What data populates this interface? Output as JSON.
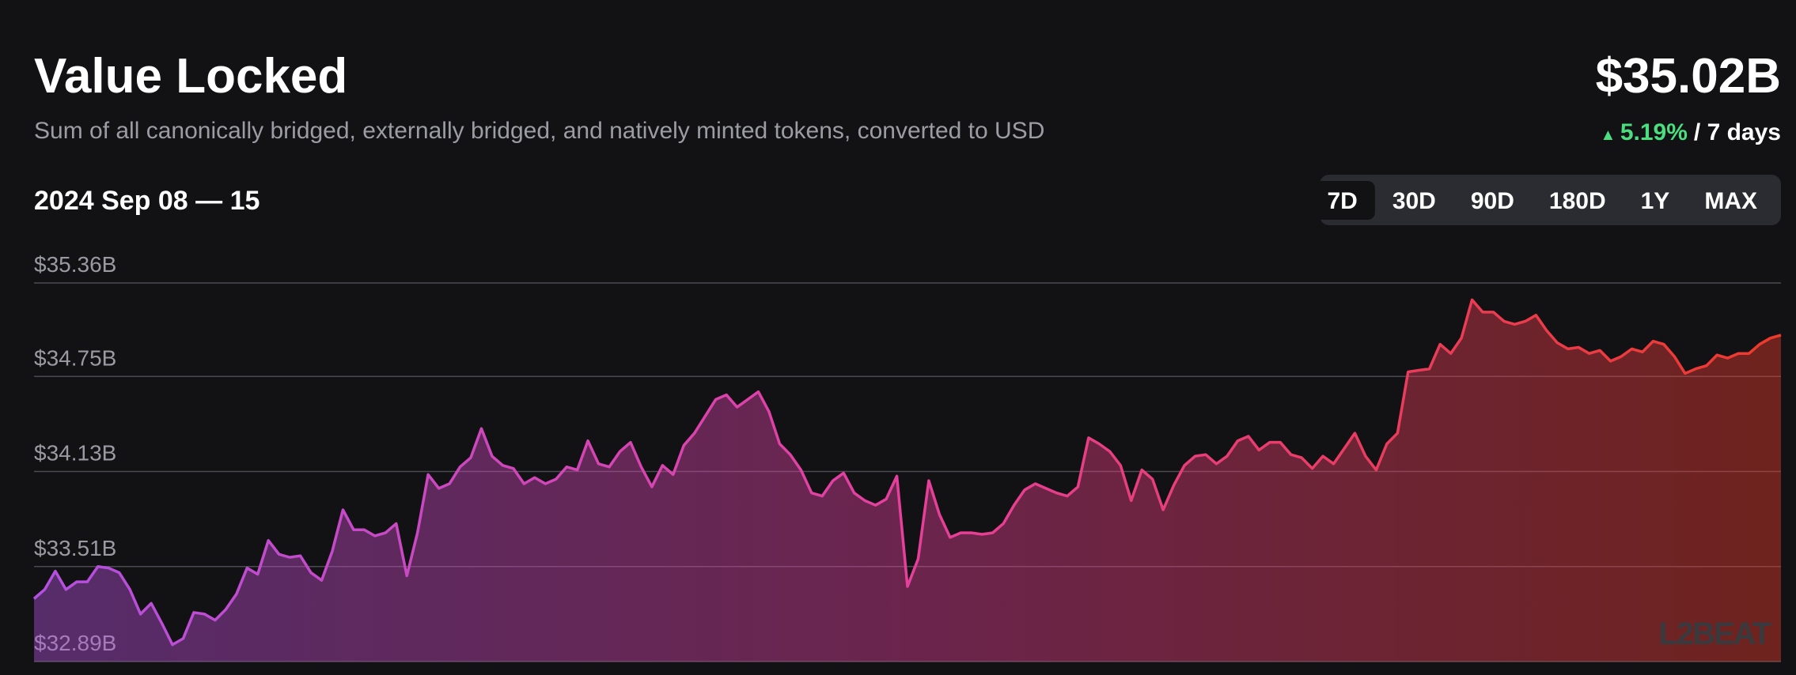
{
  "header": {
    "title": "Value Locked",
    "subtitle": "Sum of all canonically bridged, externally bridged, and natively minted tokens, converted to USD",
    "current_value": "$35.02B",
    "change": "5.19%",
    "change_period": "/ 7 days",
    "date_range": "2024 Sep 08 — 15",
    "ranges": [
      "7D",
      "30D",
      "90D",
      "180D",
      "1Y",
      "MAX"
    ],
    "selected_range": "7D",
    "watermark": "L2BEAT"
  },
  "chart_data": {
    "type": "area",
    "colors": [
      "#b450e0",
      "#e63f9c",
      "#ee3a2b"
    ],
    "ylim": [
      32.89,
      35.36
    ],
    "yticks": [
      {
        "value": 35.36,
        "label": "$35.36B"
      },
      {
        "value": 34.75,
        "label": "$34.75B"
      },
      {
        "value": 34.13,
        "label": "$34.13B"
      },
      {
        "value": 33.51,
        "label": "$33.51B"
      },
      {
        "value": 32.89,
        "label": "$32.89B"
      }
    ],
    "grid": true,
    "values": [
      33.3,
      33.36,
      33.48,
      33.36,
      33.41,
      33.41,
      33.51,
      33.5,
      33.47,
      33.36,
      33.2,
      33.27,
      33.14,
      33.0,
      33.04,
      33.21,
      33.2,
      33.16,
      33.23,
      33.33,
      33.5,
      33.46,
      33.68,
      33.59,
      33.57,
      33.58,
      33.47,
      33.42,
      33.61,
      33.88,
      33.75,
      33.75,
      33.71,
      33.73,
      33.79,
      33.45,
      33.73,
      34.11,
      34.02,
      34.05,
      34.16,
      34.22,
      34.41,
      34.23,
      34.17,
      34.15,
      34.05,
      34.09,
      34.05,
      34.08,
      34.16,
      34.14,
      34.33,
      34.18,
      34.16,
      34.26,
      34.32,
      34.16,
      34.03,
      34.17,
      34.11,
      34.3,
      34.38,
      34.49,
      34.6,
      34.63,
      34.55,
      34.6,
      34.65,
      34.52,
      34.31,
      34.24,
      34.14,
      33.99,
      33.97,
      34.07,
      34.12,
      33.99,
      33.94,
      33.91,
      33.95,
      34.1,
      33.38,
      33.56,
      34.07,
      33.85,
      33.7,
      33.73,
      33.73,
      33.72,
      33.73,
      33.79,
      33.91,
      34.01,
      34.05,
      34.02,
      33.99,
      33.97,
      34.03,
      34.35,
      34.31,
      34.26,
      34.17,
      33.94,
      34.14,
      34.08,
      33.88,
      34.04,
      34.17,
      34.23,
      34.24,
      34.18,
      34.23,
      34.33,
      34.36,
      34.27,
      34.32,
      34.32,
      34.24,
      34.22,
      34.15,
      34.23,
      34.18,
      34.28,
      34.38,
      34.23,
      34.14,
      34.31,
      34.38,
      34.78,
      34.79,
      34.8,
      34.96,
      34.9,
      35.0,
      35.25,
      35.17,
      35.17,
      35.11,
      35.09,
      35.11,
      35.15,
      35.05,
      34.97,
      34.93,
      34.94,
      34.9,
      34.92,
      34.85,
      34.88,
      34.93,
      34.91,
      34.98,
      34.96,
      34.88,
      34.77,
      34.8,
      34.82,
      34.89,
      34.87,
      34.9,
      34.9,
      34.96,
      35.0,
      35.02
    ]
  }
}
